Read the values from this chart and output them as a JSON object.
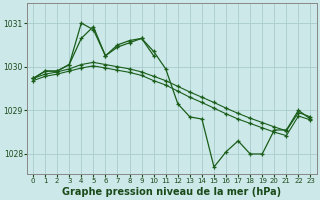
{
  "bg_color": "#cce8e8",
  "grid_color": "#aacccc",
  "line_color": "#1a5e1a",
  "xlabel": "Graphe pression niveau de la mer (hPa)",
  "xlabel_fontsize": 7.0,
  "ylim": [
    1027.55,
    1031.45
  ],
  "xlim": [
    -0.5,
    23.5
  ],
  "yticks": [
    1028,
    1029,
    1030,
    1031
  ],
  "xticks": [
    0,
    1,
    2,
    3,
    4,
    5,
    6,
    7,
    8,
    9,
    10,
    11,
    12,
    13,
    14,
    15,
    16,
    17,
    18,
    19,
    20,
    21,
    22,
    23
  ],
  "trend1_x": [
    0,
    1,
    2,
    3,
    4,
    5,
    6,
    7,
    8,
    9,
    10,
    11,
    12,
    13,
    14,
    15,
    16,
    17,
    18,
    19,
    20,
    21,
    22,
    23
  ],
  "trend1_y": [
    1029.73,
    1029.83,
    1029.88,
    1029.95,
    1030.05,
    1030.1,
    1030.05,
    1030.0,
    1029.95,
    1029.88,
    1029.78,
    1029.68,
    1029.55,
    1029.42,
    1029.3,
    1029.18,
    1029.05,
    1028.93,
    1028.82,
    1028.72,
    1028.62,
    1028.53,
    1028.95,
    1028.85
  ],
  "trend2_x": [
    0,
    1,
    2,
    3,
    4,
    5,
    6,
    7,
    8,
    9,
    10,
    11,
    12,
    13,
    14,
    15,
    16,
    17,
    18,
    19,
    20,
    21,
    22,
    23
  ],
  "trend2_y": [
    1029.68,
    1029.78,
    1029.83,
    1029.9,
    1029.97,
    1030.02,
    1029.97,
    1029.92,
    1029.87,
    1029.8,
    1029.68,
    1029.58,
    1029.44,
    1029.3,
    1029.18,
    1029.05,
    1028.92,
    1028.8,
    1028.7,
    1028.6,
    1028.5,
    1028.42,
    1028.87,
    1028.78
  ],
  "series_main_x": [
    0,
    1,
    2,
    3,
    4,
    5,
    6,
    7,
    8,
    9,
    10,
    11,
    12,
    13,
    14,
    15,
    16,
    17,
    18,
    19,
    20,
    21,
    22,
    23
  ],
  "series_main_y": [
    1029.73,
    1029.9,
    1029.9,
    1030.05,
    1031.0,
    1030.85,
    1030.25,
    1030.5,
    1030.6,
    1030.65,
    1030.35,
    1029.95,
    1029.15,
    1028.85,
    1028.8,
    1027.7,
    1028.05,
    1028.3,
    1028.0,
    1028.0,
    1028.55,
    1028.55,
    1029.0,
    1028.8
  ],
  "series_short_x": [
    0,
    1,
    2,
    3,
    4,
    5,
    6,
    7,
    8,
    9,
    10
  ],
  "series_short_y": [
    1029.73,
    1029.9,
    1029.9,
    1030.05,
    1030.65,
    1030.92,
    1030.25,
    1030.45,
    1030.55,
    1030.65,
    1030.25
  ]
}
